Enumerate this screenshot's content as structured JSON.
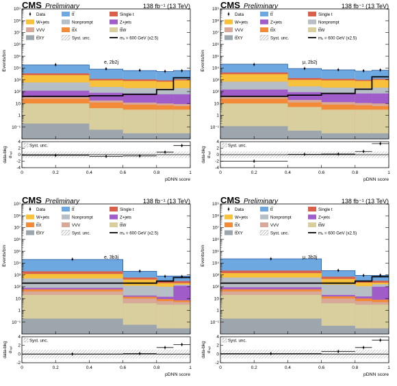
{
  "legend_order": [
    "Data",
    "tt",
    "Single-t",
    "W+jets",
    "Nonprompt",
    "Z+jets",
    "VVV",
    "ttX",
    "ttW",
    "ttXY",
    "Syst. unc.",
    "signal"
  ],
  "styles": {
    "Data": {
      "label": "Data",
      "kind": "data"
    },
    "tt": {
      "label": "tt̅",
      "color": "#6ea8e0",
      "kind": "fill"
    },
    "Single-t": {
      "label": "Single t",
      "color": "#d9604a",
      "kind": "fill"
    },
    "W+jets": {
      "label": "W+jets",
      "color": "#f7c13c",
      "kind": "fill"
    },
    "Nonprompt": {
      "label": "Nonprompt",
      "color": "#b6bec6",
      "kind": "fill"
    },
    "Z+jets": {
      "label": "Z+jets",
      "color": "#a05cc8",
      "kind": "fill"
    },
    "VVV": {
      "label": "VVV",
      "color": "#d8a898",
      "kind": "fill"
    },
    "ttX": {
      "label": "tt̅X",
      "color": "#f28a38",
      "kind": "fill"
    },
    "ttW": {
      "label": "tt̅W",
      "color": "#d8ce9e",
      "kind": "fill"
    },
    "ttXY": {
      "label": "tt̅XY",
      "color": "#9da5ad",
      "kind": "fill"
    },
    "Syst. unc.": {
      "label": "Syst. unc.",
      "kind": "hatch"
    },
    "signal": {
      "label": "mₓ = 600 GeV (x2.5)",
      "kind": "line",
      "color": "#000000"
    }
  },
  "header": {
    "experiment": "CMS",
    "status": "Preliminary",
    "lumi": "138 fb⁻¹ (13 TeV)"
  },
  "axes": {
    "y_main": "Events/bin",
    "y_ratio": "data-bkg\nσₛₐₜ",
    "x": "pDNN score"
  },
  "panels": [
    {
      "id": "top-left",
      "channel": "e, 2b2j",
      "legend_layout": [
        [
          "Data",
          "tt",
          "Single-t"
        ],
        [
          "W+jets",
          "Nonprompt",
          "Z+jets"
        ],
        [
          "VVV",
          "ttX",
          "ttW"
        ],
        [
          "ttXY",
          "Syst. unc.",
          "signal"
        ]
      ],
      "chart_data": {
        "type": "bar",
        "bin_edges": [
          0,
          0.4,
          0.6,
          0.8,
          0.9,
          1.0
        ],
        "ylim": [
          0.01,
          1000000000
        ],
        "ylog": true,
        "stack_bottom_to_top": [
          "ttXY",
          "ttW",
          "ttX",
          "VVV",
          "Z+jets",
          "Nonprompt",
          "W+jets",
          "Single-t",
          "tt"
        ],
        "stack_totals": {
          "ttXY": [
            0.2,
            0.06,
            0.03,
            0.03,
            0.03
          ],
          "ttW": [
            10,
            4,
            3,
            3,
            3
          ],
          "ttX": [
            25,
            12,
            8,
            7,
            6
          ],
          "VVV": [
            35,
            18,
            12,
            10,
            9
          ],
          "Z+jets": [
            120,
            80,
            70,
            60,
            60
          ],
          "Nonprompt": [
            600,
            250,
            200,
            180,
            200
          ],
          "W+jets": [
            2500,
            900,
            800,
            700,
            900
          ],
          "Single-t": [
            3500,
            1200,
            1100,
            900,
            1100
          ],
          "tt": [
            18000,
            8000,
            6000,
            5000,
            6000
          ]
        },
        "data": [
          19000,
          8500,
          6400,
          5300,
          5900
        ],
        "signal": [
          40,
          45,
          60,
          150,
          1500
        ],
        "ratio_ylim": [
          -4,
          4
        ],
        "ratio_ticks": [
          -4,
          -2,
          0,
          2,
          4
        ],
        "ratio_values": [
          -0.2,
          -0.5,
          -0.4,
          0.8,
          2.8
        ]
      }
    },
    {
      "id": "top-right",
      "channel": "μ, 2b2j",
      "legend_layout": [
        [
          "Data",
          "tt",
          "Single-t"
        ],
        [
          "W+jets",
          "Z+jets",
          "Nonprompt"
        ],
        [
          "VVV",
          "ttX",
          "ttW"
        ],
        [
          "ttXY",
          "Syst. unc.",
          "signal"
        ]
      ],
      "chart_data": {
        "type": "bar",
        "bin_edges": [
          0,
          0.4,
          0.6,
          0.8,
          0.9,
          1.0
        ],
        "ylim": [
          0.01,
          1000000000
        ],
        "ylog": true,
        "stack_bottom_to_top": [
          "ttXY",
          "ttW",
          "ttX",
          "VVV",
          "Z+jets",
          "Nonprompt",
          "W+jets",
          "Single-t",
          "tt"
        ],
        "stack_totals": {
          "ttXY": [
            0.12,
            0.05,
            0.03,
            0.03,
            0.03
          ],
          "ttW": [
            10,
            5,
            3,
            3,
            3
          ],
          "ttX": [
            25,
            12,
            8,
            7,
            6
          ],
          "VVV": [
            40,
            20,
            13,
            11,
            10
          ],
          "Z+jets": [
            150,
            90,
            80,
            70,
            70
          ],
          "Nonprompt": [
            700,
            280,
            220,
            200,
            220
          ],
          "W+jets": [
            3000,
            1000,
            900,
            800,
            1000
          ],
          "Single-t": [
            4200,
            1400,
            1200,
            1000,
            1200
          ],
          "tt": [
            21000,
            9000,
            7000,
            5500,
            6500
          ]
        },
        "data": [
          20000,
          9200,
          7100,
          5900,
          6800
        ],
        "signal": [
          40,
          50,
          70,
          160,
          1800
        ],
        "ratio_ylim": [
          -4,
          4
        ],
        "ratio_ticks": [
          -4,
          -2,
          0,
          2,
          4
        ],
        "ratio_values": [
          -2.0,
          0.1,
          0.2,
          1.0,
          3.4
        ]
      }
    },
    {
      "id": "bottom-left",
      "channel": "e, 3b3j",
      "legend_layout": [
        [
          "Data",
          "tt",
          "Single-t"
        ],
        [
          "W+jets",
          "Nonprompt",
          "Z+jets"
        ],
        [
          "ttX",
          "VVV",
          "ttW"
        ],
        [
          "ttXY",
          "Syst. unc.",
          "signal"
        ]
      ],
      "chart_data": {
        "type": "bar",
        "bin_edges": [
          0,
          0.6,
          0.8,
          0.9,
          1.0
        ],
        "ylim": [
          0.01,
          1000000000
        ],
        "ylog": true,
        "stack_bottom_to_top": [
          "ttXY",
          "ttW",
          "VVV",
          "ttX",
          "Z+jets",
          "Nonprompt",
          "W+jets",
          "Single-t",
          "tt"
        ],
        "stack_totals": {
          "ttXY": [
            0.2,
            0.06,
            0.03,
            0.03
          ],
          "ttW": [
            20,
            4,
            3,
            3
          ],
          "VVV": [
            40,
            10,
            6,
            5
          ],
          "ttX": [
            60,
            14,
            9,
            7
          ],
          "Z+jets": [
            80,
            18,
            14,
            120
          ],
          "Nonprompt": [
            500,
            120,
            100,
            150
          ],
          "W+jets": [
            1200,
            400,
            200,
            200
          ],
          "Single-t": [
            2000,
            600,
            300,
            300
          ],
          "tt": [
            20000,
            2000,
            800,
            800
          ]
        },
        "data": [
          21000,
          2100,
          750,
          720
        ],
        "signal": [
          200,
          200,
          300,
          600
        ],
        "ratio_ylim": [
          -2,
          4
        ],
        "ratio_ticks": [
          -2,
          0,
          2,
          4
        ],
        "ratio_values": [
          0.0,
          0.1,
          1.5,
          2.2
        ]
      }
    },
    {
      "id": "bottom-right",
      "channel": "μ, 3b3j",
      "legend_layout": [
        [
          "Data",
          "tt",
          "Single-t"
        ],
        [
          "W+jets",
          "Nonprompt",
          "Z+jets"
        ],
        [
          "ttX",
          "VVV",
          "ttW"
        ],
        [
          "ttXY",
          "Syst. unc.",
          "signal"
        ]
      ],
      "chart_data": {
        "type": "bar",
        "bin_edges": [
          0,
          0.6,
          0.8,
          0.9,
          1.0
        ],
        "ylim": [
          0.01,
          1000000000
        ],
        "ylog": true,
        "stack_bottom_to_top": [
          "ttXY",
          "ttW",
          "VVV",
          "ttX",
          "Z+jets",
          "Nonprompt",
          "W+jets",
          "Single-t",
          "tt"
        ],
        "stack_totals": {
          "ttXY": [
            0.2,
            0.05,
            0.03,
            0.03
          ],
          "ttW": [
            20,
            4,
            3,
            3
          ],
          "VVV": [
            40,
            10,
            6,
            5
          ],
          "ttX": [
            60,
            15,
            10,
            8
          ],
          "Z+jets": [
            90,
            20,
            15,
            100
          ],
          "Nonprompt": [
            600,
            150,
            110,
            160
          ],
          "W+jets": [
            1400,
            450,
            220,
            220
          ],
          "Single-t": [
            2300,
            700,
            330,
            320
          ],
          "tt": [
            23000,
            2300,
            900,
            900
          ]
        },
        "data": [
          23000,
          2400,
          900,
          950
        ],
        "signal": [
          200,
          200,
          300,
          700
        ],
        "ratio_ylim": [
          -2,
          4
        ],
        "ratio_ticks": [
          -2,
          0,
          2,
          4
        ],
        "ratio_values": [
          0.1,
          0.6,
          1.5,
          3.2
        ]
      }
    }
  ],
  "x_ticks": [
    0,
    0.2,
    0.4,
    0.6,
    0.8,
    1
  ],
  "y_tick_labels": [
    "10⁻¹",
    "1",
    "10",
    "10²",
    "10³",
    "10⁴",
    "10⁵",
    "10⁶",
    "10⁷",
    "10⁸",
    "10⁹"
  ],
  "y_tick_exponents": [
    -1,
    0,
    1,
    2,
    3,
    4,
    5,
    6,
    7,
    8,
    9
  ]
}
